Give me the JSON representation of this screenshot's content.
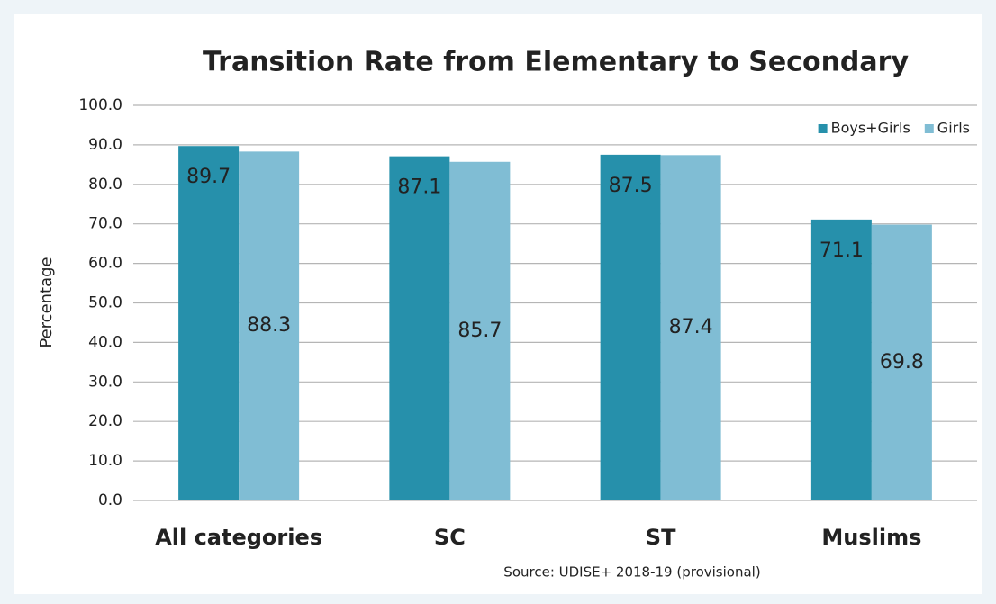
{
  "chart_data": {
    "type": "bar",
    "title": "Transition Rate from Elementary to Secondary",
    "y_label": "Percentage",
    "source": "Source: UDISE+ 2018-19 (provisional)",
    "categories": [
      "All categories",
      "SC",
      "ST",
      "Muslims"
    ],
    "series": [
      {
        "name": "Boys+Girls",
        "color": "#2690ab",
        "values": [
          89.7,
          87.1,
          87.5,
          71.1
        ]
      },
      {
        "name": "Girls",
        "color": "#80bdd4",
        "values": [
          88.3,
          85.7,
          87.4,
          69.8
        ]
      }
    ],
    "ylim": [
      0,
      100
    ],
    "yticks": [
      {
        "value": 0,
        "label": "0.0"
      },
      {
        "value": 10,
        "label": "10.0"
      },
      {
        "value": 20,
        "label": "20.0"
      },
      {
        "value": 30,
        "label": "30.0"
      },
      {
        "value": 40,
        "label": "40.0"
      },
      {
        "value": 50,
        "label": "50.0"
      },
      {
        "value": 60,
        "label": "60.0"
      },
      {
        "value": 70,
        "label": "70.0"
      },
      {
        "value": 80,
        "label": "80.0"
      },
      {
        "value": 90,
        "label": "90.0"
      },
      {
        "value": {
          "value": 100
        },
        "label": "100.0"
      }
    ],
    "grid": true,
    "legend": "upper right"
  }
}
